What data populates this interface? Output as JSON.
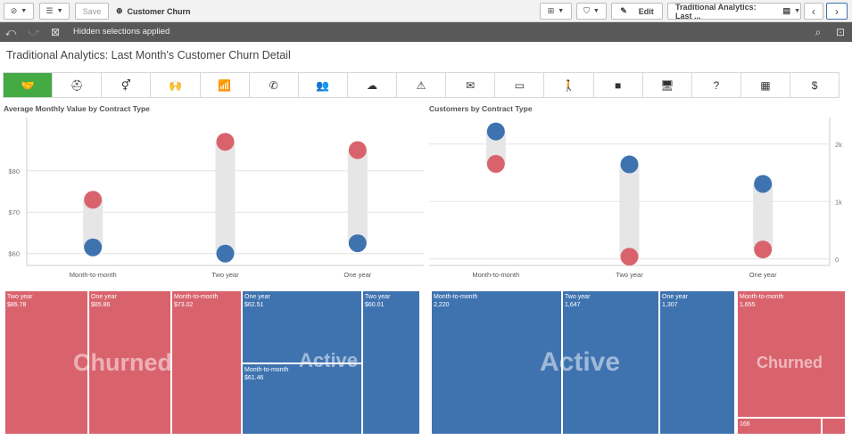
{
  "toolbar": {
    "save_label": "Save",
    "app_name": "Customer Churn",
    "edit_label": "Edit",
    "sheet_selector": "Traditional Analytics: Last ..."
  },
  "selections": {
    "text": "Hidden selections applied"
  },
  "sheet": {
    "title": "Traditional Analytics: Last Month's Customer Churn Detail"
  },
  "nav_icons": [
    "handshake-icon",
    "medical-kit-icon",
    "gender-icon",
    "person-raised-icon",
    "wifi-icon",
    "phone-icon",
    "group-icon",
    "cloud-upload-icon",
    "warning-icon",
    "mail-icon",
    "credit-card-icon",
    "walking-person-icon",
    "video-camera-icon",
    "monitor-icon",
    "question-icon",
    "calendar-icon",
    "dollar-icon"
  ],
  "nav_glyphs": [
    "🤝",
    "⛑",
    "⚥",
    "🙌",
    "📶",
    "✆",
    "👥",
    "☁",
    "⚠",
    "✉",
    "▭",
    "🚶",
    "■",
    "🖥",
    "?",
    "▦",
    "$"
  ],
  "colors": {
    "churned": "#d9636d",
    "active": "#3f73b0",
    "accent": "#44aa44"
  },
  "chart_data": [
    {
      "type": "scatter",
      "title": "Average Monthly Value by Contract Type",
      "categories": [
        "Month-to-month",
        "Two year",
        "One year"
      ],
      "series": [
        {
          "name": "Churned",
          "values": [
            73,
            87,
            85
          ]
        },
        {
          "name": "Active",
          "values": [
            61.5,
            60,
            62.5
          ]
        }
      ],
      "yticks": [
        "$60",
        "$70",
        "$80"
      ],
      "ylim": [
        58,
        92
      ]
    },
    {
      "type": "scatter",
      "title": "Customers by Contract Type",
      "categories": [
        "Month-to-month",
        "Two year",
        "One year"
      ],
      "series": [
        {
          "name": "Churned",
          "values": [
            1655,
            40,
            166
          ]
        },
        {
          "name": "Active",
          "values": [
            2220,
            1647,
            1307
          ]
        }
      ],
      "yticks": [
        "0",
        "1k",
        "2k"
      ],
      "ylim": [
        -50,
        2400
      ]
    }
  ],
  "treemap_left": {
    "churned_label": "Churned",
    "active_label": "Active",
    "cells": [
      {
        "name": "Two year",
        "value": "$86.78"
      },
      {
        "name": "One year",
        "value": "$85.86"
      },
      {
        "name": "Month-to-month",
        "value": "$73.02"
      },
      {
        "name": "One year",
        "value": "$62.51"
      },
      {
        "name": "Two year",
        "value": "$60.01"
      },
      {
        "name": "Month-to-month",
        "value": "$61.46"
      }
    ]
  },
  "treemap_right": {
    "active_label": "Active",
    "churned_label": "Churned",
    "cells": [
      {
        "name": "Month-to-month",
        "value": "2,220"
      },
      {
        "name": "Two year",
        "value": "1,647"
      },
      {
        "name": "One year",
        "value": "1,307"
      },
      {
        "name": "Month-to-month",
        "value": "1,655"
      },
      {
        "name": "",
        "value": "166"
      }
    ]
  }
}
